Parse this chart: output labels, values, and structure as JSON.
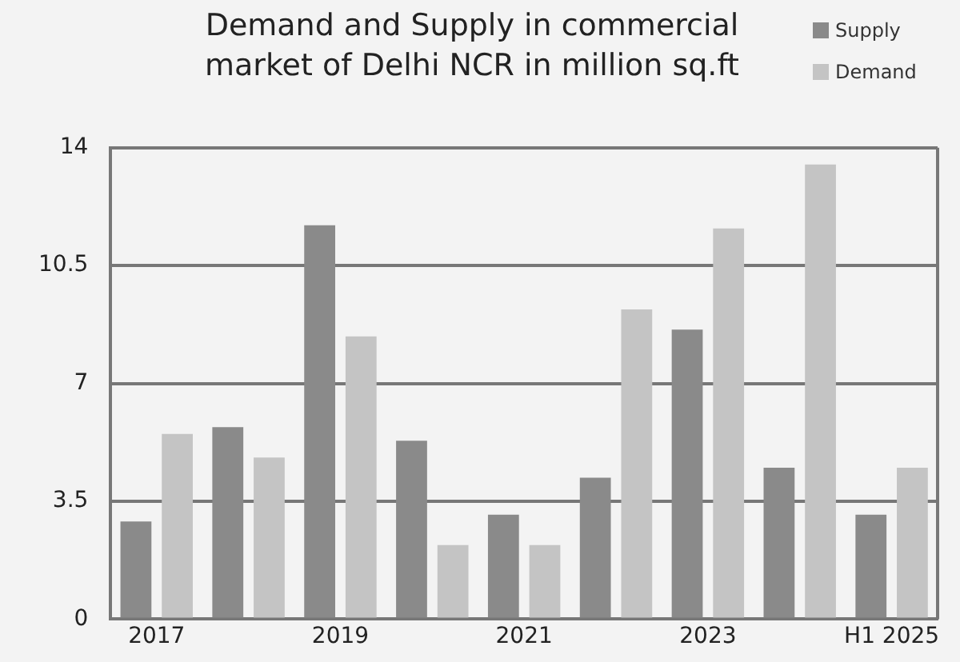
{
  "chart_data": {
    "type": "bar",
    "title": "Demand and Supply in commercial market of Delhi NCR in million sq.ft",
    "categories": [
      "2017",
      null,
      "2019",
      null,
      "2021",
      null,
      "2023",
      null,
      "H1 2025"
    ],
    "series": [
      {
        "name": "Supply",
        "color": "#8a8a8a",
        "values": [
          2.9,
          5.7,
          11.7,
          5.3,
          3.1,
          4.2,
          8.6,
          4.5,
          3.1
        ]
      },
      {
        "name": "Demand",
        "color": "#c4c4c4",
        "values": [
          5.5,
          4.8,
          8.4,
          2.2,
          2.2,
          9.2,
          11.6,
          13.5,
          4.5
        ]
      }
    ],
    "ylim": [
      0,
      14
    ],
    "yticks": [
      0,
      3.5,
      7,
      10.5,
      14
    ],
    "grid": "y",
    "legend": "top right"
  }
}
